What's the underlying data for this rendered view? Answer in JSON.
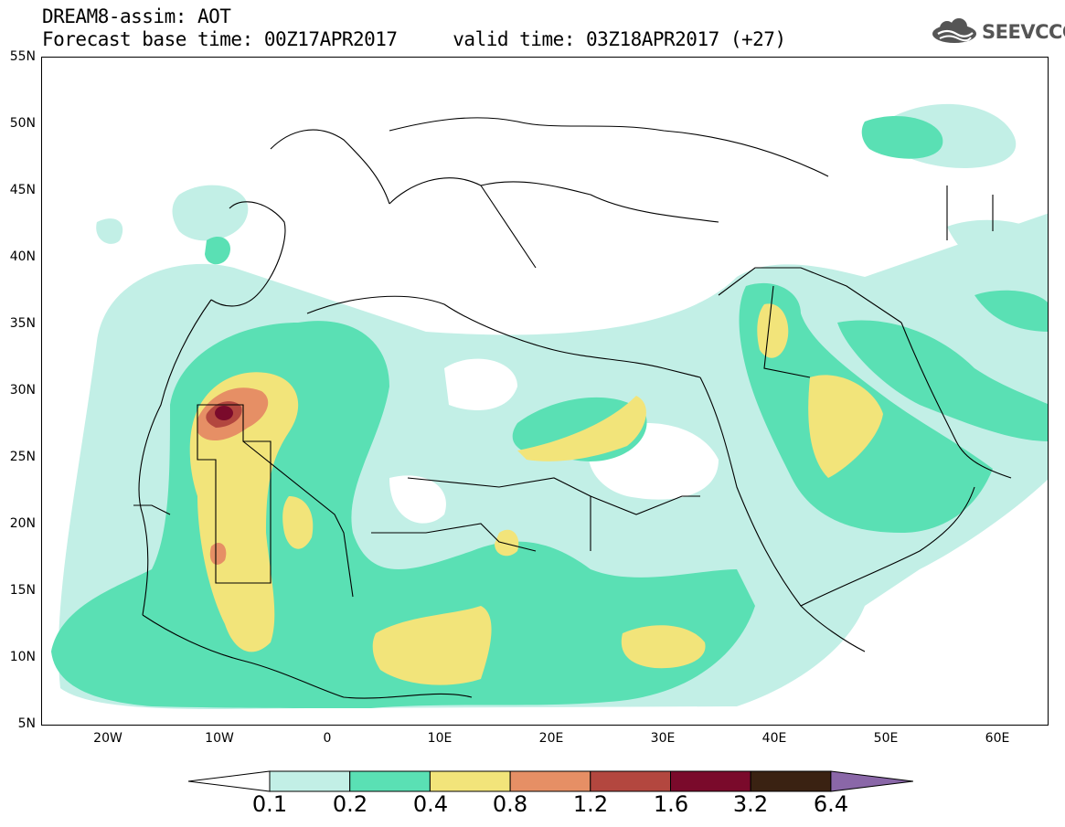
{
  "header": {
    "title_line1": "DREAM8-assim: AOT",
    "title_line2": "Forecast base time: 00Z17APR2017     valid time: 03Z18APR2017 (+27)",
    "logo_text": "SEEVCCC"
  },
  "map": {
    "lat_labels": [
      "55N",
      "50N",
      "45N",
      "40N",
      "35N",
      "30N",
      "25N",
      "20N",
      "15N",
      "10N",
      "5N"
    ],
    "lon_labels": [
      "20W",
      "10W",
      "0",
      "10E",
      "20E",
      "30E",
      "40E",
      "50E",
      "60E"
    ],
    "lon_range": [
      -25,
      65
    ],
    "lat_range": [
      5,
      55
    ]
  },
  "legend": {
    "levels": [
      "0.1",
      "0.2",
      "0.4",
      "0.8",
      "1.2",
      "1.6",
      "3.2",
      "6.4"
    ],
    "colors": [
      "#ffffff",
      "#c2efe6",
      "#5ae0b4",
      "#f2e47a",
      "#e68f65",
      "#b3473f",
      "#7a0a2b",
      "#3a2212",
      "#8a67a8"
    ]
  }
}
